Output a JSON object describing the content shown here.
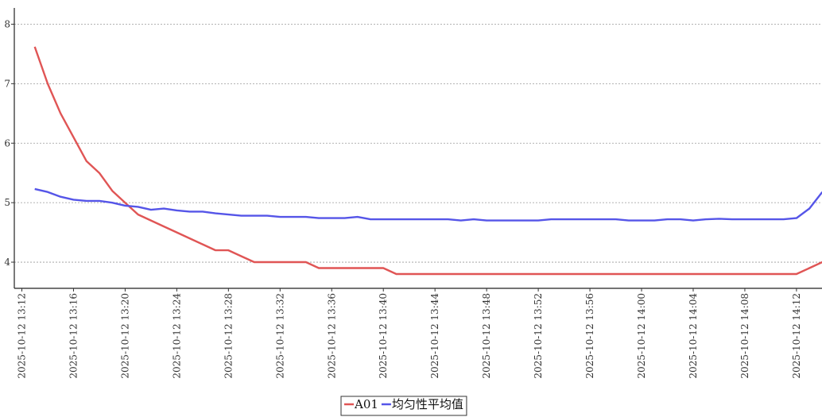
{
  "chart_data": {
    "type": "line",
    "title": "",
    "xlabel": "",
    "ylabel": "",
    "ylim": [
      3.56,
      8.3
    ],
    "y_ticks": [
      "4",
      "5",
      "6",
      "7",
      "8"
    ],
    "x_tick_labels": [
      "2025-10-12 13:12",
      "2025-10-12 13:16",
      "2025-10-12 13:20",
      "2025-10-12 13:24",
      "2025-10-12 13:28",
      "2025-10-12 13:32",
      "2025-10-12 13:36",
      "2025-10-12 13:40",
      "2025-10-12 13:44",
      "2025-10-12 13:48",
      "2025-10-12 13:52",
      "2025-10-12 13:56",
      "2025-10-12 14:00",
      "2025-10-12 14:04",
      "2025-10-12 14:08",
      "2025-10-12 14:12"
    ],
    "grid": true,
    "legend_position": "bottom-center",
    "series": [
      {
        "name": "A01",
        "color": "#e05555",
        "points": [
          [
            "13:13",
            7.62
          ],
          [
            "13:14",
            7.0
          ],
          [
            "13:15",
            6.5
          ],
          [
            "13:16",
            6.1
          ],
          [
            "13:17",
            5.7
          ],
          [
            "13:18",
            5.5
          ],
          [
            "13:19",
            5.2
          ],
          [
            "13:20",
            5.0
          ],
          [
            "13:21",
            4.8
          ],
          [
            "13:22",
            4.7
          ],
          [
            "13:23",
            4.6
          ],
          [
            "13:24",
            4.5
          ],
          [
            "13:25",
            4.4
          ],
          [
            "13:26",
            4.3
          ],
          [
            "13:27",
            4.2
          ],
          [
            "13:28",
            4.2
          ],
          [
            "13:29",
            4.1
          ],
          [
            "13:30",
            4.0
          ],
          [
            "13:34",
            4.0
          ],
          [
            "13:35",
            3.9
          ],
          [
            "13:40",
            3.9
          ],
          [
            "13:41",
            3.8
          ],
          [
            "14:12",
            3.8
          ],
          [
            "14:14",
            4.0
          ]
        ]
      },
      {
        "name": "均匀性平均值",
        "color": "#5555e8",
        "points": [
          [
            "13:13",
            5.23
          ],
          [
            "13:14",
            5.18
          ],
          [
            "13:15",
            5.1
          ],
          [
            "13:16",
            5.05
          ],
          [
            "13:17",
            5.03
          ],
          [
            "13:18",
            5.03
          ],
          [
            "13:19",
            5.0
          ],
          [
            "13:20",
            4.95
          ],
          [
            "13:21",
            4.93
          ],
          [
            "13:22",
            4.88
          ],
          [
            "13:23",
            4.9
          ],
          [
            "13:24",
            4.87
          ],
          [
            "13:25",
            4.85
          ],
          [
            "13:26",
            4.85
          ],
          [
            "13:27",
            4.82
          ],
          [
            "13:28",
            4.8
          ],
          [
            "13:29",
            4.78
          ],
          [
            "13:31",
            4.78
          ],
          [
            "13:32",
            4.76
          ],
          [
            "13:34",
            4.76
          ],
          [
            "13:35",
            4.74
          ],
          [
            "13:37",
            4.74
          ],
          [
            "13:38",
            4.76
          ],
          [
            "13:39",
            4.72
          ],
          [
            "13:45",
            4.72
          ],
          [
            "13:46",
            4.7
          ],
          [
            "13:47",
            4.72
          ],
          [
            "13:48",
            4.7
          ],
          [
            "13:52",
            4.7
          ],
          [
            "13:53",
            4.72
          ],
          [
            "13:58",
            4.72
          ],
          [
            "13:59",
            4.7
          ],
          [
            "14:01",
            4.7
          ],
          [
            "14:02",
            4.72
          ],
          [
            "14:03",
            4.72
          ],
          [
            "14:04",
            4.7
          ],
          [
            "14:05",
            4.72
          ],
          [
            "14:06",
            4.73
          ],
          [
            "14:07",
            4.72
          ],
          [
            "14:11",
            4.72
          ],
          [
            "14:12",
            4.74
          ],
          [
            "14:13",
            4.9
          ],
          [
            "14:14",
            5.18
          ]
        ]
      }
    ]
  }
}
